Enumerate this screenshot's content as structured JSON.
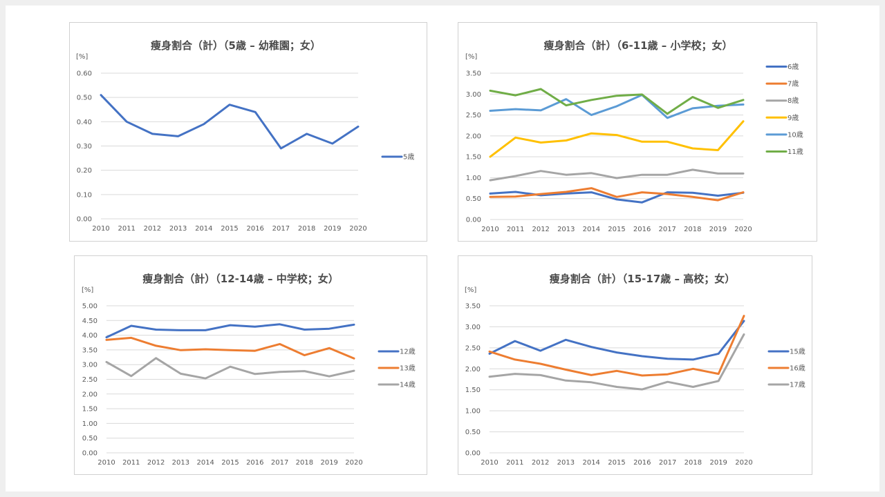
{
  "chart_data": [
    {
      "type": "line",
      "title": "痩身割合（計）（5歳 – 幼稚園；女）",
      "unit_label": "[%]",
      "x": [
        "2010",
        "2011",
        "2012",
        "2013",
        "2014",
        "2015",
        "2016",
        "2017",
        "2018",
        "2019",
        "2020"
      ],
      "y_ticks": [
        "0.00",
        "0.10",
        "0.20",
        "0.30",
        "0.40",
        "0.50",
        "0.60"
      ],
      "ylim": [
        0,
        0.6
      ],
      "grid": true,
      "legend_position": "right",
      "series": [
        {
          "name": "5歳",
          "color": "#4472C4",
          "values": [
            0.51,
            0.4,
            0.35,
            0.34,
            0.39,
            0.47,
            0.44,
            0.29,
            0.35,
            0.31,
            0.38
          ]
        }
      ]
    },
    {
      "type": "line",
      "title": "痩身割合（計）（6-11歳 – 小学校；女）",
      "unit_label": "[%]",
      "x": [
        "2010",
        "2011",
        "2012",
        "2013",
        "2014",
        "2015",
        "2016",
        "2017",
        "2018",
        "2019",
        "2020"
      ],
      "y_ticks": [
        "0.00",
        "0.50",
        "1.00",
        "1.50",
        "2.00",
        "2.50",
        "3.00",
        "3.50"
      ],
      "ylim": [
        0,
        3.5
      ],
      "grid": true,
      "legend_position": "right",
      "series": [
        {
          "name": "6歳",
          "color": "#4472C4",
          "values": [
            0.62,
            0.66,
            0.58,
            0.62,
            0.65,
            0.48,
            0.41,
            0.65,
            0.64,
            0.57,
            0.64
          ]
        },
        {
          "name": "7歳",
          "color": "#ED7D31",
          "values": [
            0.54,
            0.55,
            0.61,
            0.66,
            0.75,
            0.54,
            0.65,
            0.61,
            0.54,
            0.46,
            0.65
          ]
        },
        {
          "name": "8歳",
          "color": "#A5A5A5",
          "values": [
            0.94,
            1.04,
            1.16,
            1.07,
            1.11,
            0.99,
            1.07,
            1.07,
            1.19,
            1.1,
            1.1
          ]
        },
        {
          "name": "9歳",
          "color": "#FFC000",
          "values": [
            1.5,
            1.96,
            1.84,
            1.89,
            2.06,
            2.02,
            1.86,
            1.86,
            1.7,
            1.66,
            2.35
          ]
        },
        {
          "name": "10歳",
          "color": "#5B9BD5",
          "values": [
            2.6,
            2.64,
            2.61,
            2.88,
            2.5,
            2.71,
            2.98,
            2.43,
            2.66,
            2.72,
            2.75
          ]
        },
        {
          "name": "11歳",
          "color": "#70AD47",
          "values": [
            3.08,
            2.97,
            3.12,
            2.73,
            2.86,
            2.96,
            2.99,
            2.53,
            2.93,
            2.67,
            2.86
          ]
        }
      ]
    },
    {
      "type": "line",
      "title": "痩身割合（計）（12-14歳 – 中学校；女）",
      "unit_label": "[%]",
      "x": [
        "2010",
        "2011",
        "2012",
        "2013",
        "2014",
        "2015",
        "2016",
        "2017",
        "2018",
        "2019",
        "2020"
      ],
      "y_ticks": [
        "0.00",
        "0.50",
        "1.00",
        "1.50",
        "2.00",
        "2.50",
        "3.00",
        "3.50",
        "4.00",
        "4.50",
        "5.00"
      ],
      "ylim": [
        0,
        5.0
      ],
      "grid": true,
      "legend_position": "right",
      "series": [
        {
          "name": "12歳",
          "color": "#4472C4",
          "values": [
            3.93,
            4.32,
            4.19,
            4.17,
            4.17,
            4.34,
            4.29,
            4.37,
            4.19,
            4.22,
            4.36
          ]
        },
        {
          "name": "13歳",
          "color": "#ED7D31",
          "values": [
            3.84,
            3.91,
            3.64,
            3.49,
            3.52,
            3.49,
            3.47,
            3.7,
            3.32,
            3.56,
            3.21
          ]
        },
        {
          "name": "14歳",
          "color": "#A5A5A5",
          "values": [
            3.09,
            2.61,
            3.22,
            2.69,
            2.53,
            2.93,
            2.68,
            2.75,
            2.78,
            2.6,
            2.79
          ]
        }
      ]
    },
    {
      "type": "line",
      "title": "痩身割合（計）（15-17歳 – 高校；女）",
      "unit_label": "[%]",
      "x": [
        "2010",
        "2011",
        "2012",
        "2013",
        "2014",
        "2015",
        "2016",
        "2017",
        "2018",
        "2019",
        "2020"
      ],
      "y_ticks": [
        "0.00",
        "0.50",
        "1.00",
        "1.50",
        "2.00",
        "2.50",
        "3.00",
        "3.50"
      ],
      "ylim": [
        0,
        3.5
      ],
      "grid": true,
      "legend_position": "right",
      "series": [
        {
          "name": "15歳",
          "color": "#4472C4",
          "values": [
            2.36,
            2.66,
            2.43,
            2.69,
            2.52,
            2.39,
            2.3,
            2.24,
            2.22,
            2.36,
            3.14
          ]
        },
        {
          "name": "16歳",
          "color": "#ED7D31",
          "values": [
            2.41,
            2.22,
            2.12,
            1.98,
            1.85,
            1.95,
            1.84,
            1.87,
            2.0,
            1.88,
            3.26
          ]
        },
        {
          "name": "17歳",
          "color": "#A5A5A5",
          "values": [
            1.81,
            1.88,
            1.85,
            1.72,
            1.68,
            1.57,
            1.51,
            1.69,
            1.57,
            1.71,
            2.82
          ]
        }
      ]
    }
  ]
}
